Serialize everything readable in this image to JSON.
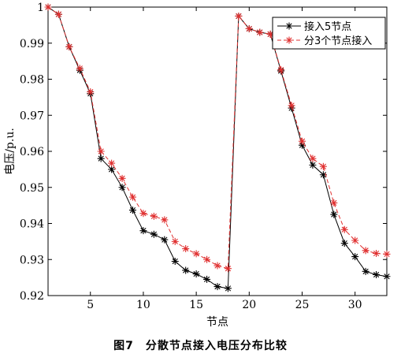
{
  "chart_data": {
    "type": "line",
    "xlabel": "节点",
    "ylabel": "电压/p.u.",
    "xlim": [
      1,
      33
    ],
    "ylim": [
      0.92,
      1.0
    ],
    "xticks": [
      5,
      10,
      15,
      20,
      25,
      30
    ],
    "yticks": [
      0.92,
      0.93,
      0.94,
      0.95,
      0.96,
      0.97,
      0.98,
      0.99,
      1.0
    ],
    "ytick_labels": [
      "0.92",
      "0.93",
      "0.94",
      "0.95",
      "0.96",
      "0.97",
      "0.98",
      "0.99",
      "1"
    ],
    "grid": false,
    "legend_position": "top-right",
    "x": [
      1,
      2,
      3,
      4,
      5,
      6,
      7,
      8,
      9,
      10,
      11,
      12,
      13,
      14,
      15,
      16,
      17,
      18,
      19,
      20,
      21,
      22,
      23,
      24,
      25,
      26,
      27,
      28,
      29,
      30,
      31,
      32,
      33
    ],
    "series": [
      {
        "name": "接入5节点",
        "color": "#000000",
        "line_style": "solid",
        "marker": "asterisk",
        "values": [
          1.0,
          0.998,
          0.989,
          0.9825,
          0.976,
          0.958,
          0.955,
          0.95,
          0.9437,
          0.938,
          0.937,
          0.9355,
          0.9295,
          0.927,
          0.926,
          0.9245,
          0.9225,
          0.922,
          0.9975,
          0.994,
          0.993,
          0.9925,
          0.9823,
          0.972,
          0.9617,
          0.9562,
          0.9535,
          0.9425,
          0.9345,
          0.9308,
          0.9267,
          0.9258,
          0.9253
        ]
      },
      {
        "name": "分3个节点接入",
        "color": "#e03030",
        "line_style": "dashed",
        "marker": "asterisk",
        "values": [
          1.0,
          0.998,
          0.989,
          0.983,
          0.9765,
          0.96,
          0.9567,
          0.9525,
          0.9473,
          0.9428,
          0.942,
          0.941,
          0.935,
          0.933,
          0.9316,
          0.93,
          0.9283,
          0.9275,
          0.9975,
          0.994,
          0.993,
          0.9925,
          0.9826,
          0.9727,
          0.9628,
          0.958,
          0.9558,
          0.9457,
          0.9383,
          0.9353,
          0.9325,
          0.9317,
          0.9315
        ]
      }
    ]
  },
  "caption": "图7　分散节点接入电压分布比较"
}
